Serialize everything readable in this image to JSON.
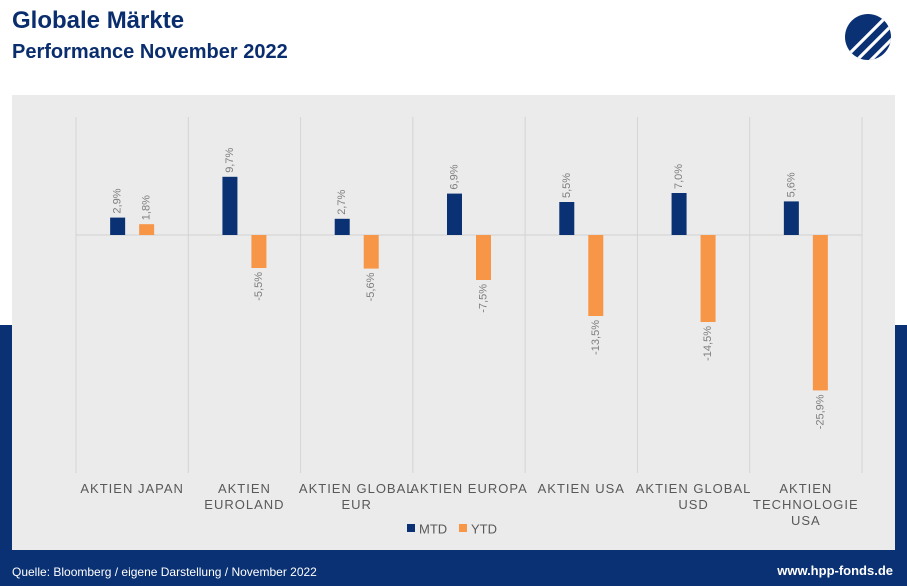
{
  "header": {
    "title": "Globale Märkte",
    "subtitle": "Performance November 2022"
  },
  "logo": {
    "icon": "hpp-logo-icon",
    "color": "#0a3173"
  },
  "footer": {
    "source": "Quelle: Bloomberg / eigene Darstellung / November 2022",
    "website": "www.hpp-fonds.de"
  },
  "colors": {
    "mtd": "#0a3173",
    "ytd": "#f79646",
    "band": "#0a3173",
    "panel": "#ebebeb"
  },
  "chart_data": {
    "type": "bar",
    "categories": [
      [
        "AKTIEN JAPAN"
      ],
      [
        "AKTIEN",
        "EUROLAND"
      ],
      [
        "AKTIEN GLOBAL",
        "EUR"
      ],
      [
        "AKTIEN EUROPA"
      ],
      [
        "AKTIEN USA"
      ],
      [
        "AKTIEN GLOBAL",
        "USD"
      ],
      [
        "AKTIEN",
        "TECHNOLOGIE",
        "USA"
      ]
    ],
    "series": [
      {
        "name": "MTD",
        "values": [
          2.9,
          9.7,
          2.7,
          6.9,
          5.5,
          7.0,
          5.6
        ],
        "labels": [
          "2,9%",
          "9,7%",
          "2,7%",
          "6,9%",
          "5,5%",
          "7,0%",
          "5,6%"
        ]
      },
      {
        "name": "YTD",
        "values": [
          1.8,
          -5.5,
          -5.6,
          -7.5,
          -13.5,
          -14.5,
          -25.9
        ],
        "labels": [
          "1,8%",
          "-5,5%",
          "-5,6%",
          "-7,5%",
          "-13,5%",
          "-14,5%",
          "-25,9%"
        ]
      }
    ],
    "ylim": [
      -40,
      12
    ],
    "legend": "bottom",
    "grid": "vertical category separators"
  }
}
